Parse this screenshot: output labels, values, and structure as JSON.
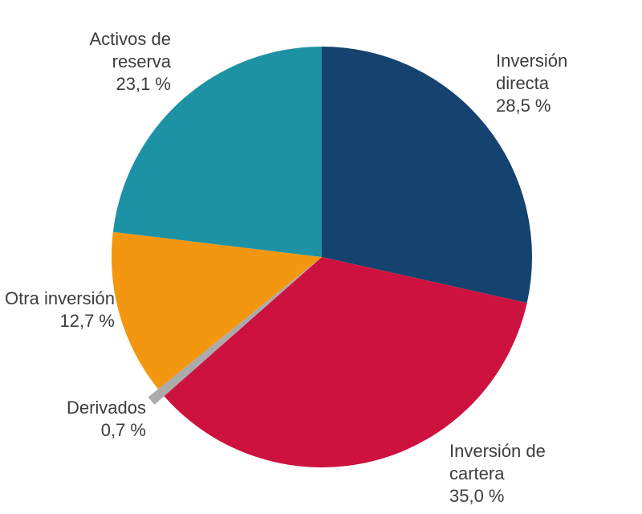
{
  "chart_data": {
    "type": "pie",
    "title": "",
    "unit": "%",
    "decimal_separator": ",",
    "start_angle_deg": 0,
    "direction": "clockwise",
    "background_color": "#ffffff",
    "label_color": "#3d3d3d",
    "slices": [
      {
        "name": "Inversión directa",
        "value": 28.5,
        "color": "#13436e",
        "pulled_out": false,
        "label_lines": [
          "Inversión",
          "directa",
          "28,5 %"
        ]
      },
      {
        "name": "Inversión de cartera",
        "value": 35.0,
        "color": "#ce123f",
        "pulled_out": false,
        "label_lines": [
          "Inversión de",
          "cartera",
          "35,0 %"
        ]
      },
      {
        "name": "Derivados",
        "value": 0.7,
        "color": "#ababab",
        "pulled_out": true,
        "label_lines": [
          "Derivados",
          "0,7 %"
        ]
      },
      {
        "name": "Otra inversión",
        "value": 12.7,
        "color": "#f39711",
        "pulled_out": false,
        "label_lines": [
          "Otra inversión",
          "12,7 %"
        ]
      },
      {
        "name": "Activos de reserva",
        "value": 23.1,
        "color": "#1c92a4",
        "pulled_out": false,
        "label_lines": [
          "Activos de",
          "reserva",
          "23,1 %"
        ]
      }
    ]
  }
}
